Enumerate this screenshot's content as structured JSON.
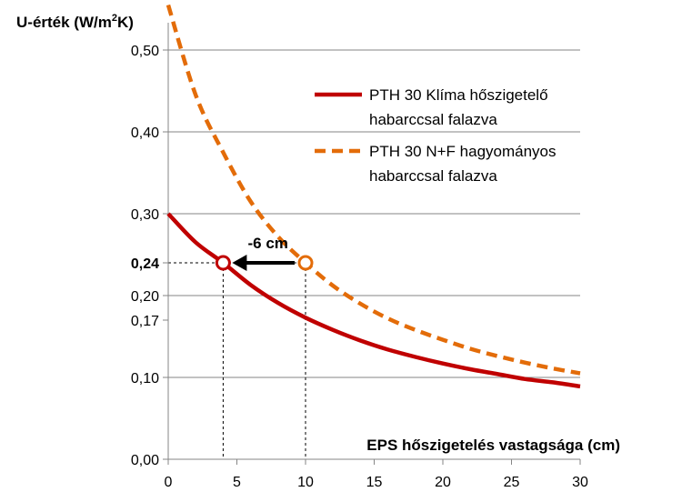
{
  "chart_data": {
    "type": "line",
    "ylabel": "U-érték (W/m²K)",
    "ylabel_parts": [
      "U-érték (W/m",
      "2",
      "K)"
    ],
    "xlabel": "EPS hőszigetelés vastagsága (cm)",
    "xlim": [
      0,
      30
    ],
    "ylim": [
      0,
      0.55
    ],
    "x_ticks": [
      0,
      5,
      10,
      15,
      20,
      25,
      30
    ],
    "x_tick_labels": [
      "0",
      "5",
      "10",
      "15",
      "20",
      "25",
      "30"
    ],
    "y_ticks": [
      0.0,
      0.1,
      0.17,
      0.2,
      0.24,
      0.3,
      0.4,
      0.5
    ],
    "y_tick_labels": [
      "0,00",
      "0,10",
      "0,17",
      "0,20",
      "0,24",
      "0,30",
      "0,40",
      "0,50"
    ],
    "y_tick_bold": [
      "0,24"
    ],
    "gridlines_y": [
      0.1,
      0.2,
      0.3,
      0.4,
      0.5
    ],
    "grid": true,
    "legend_position": "top-right",
    "series": [
      {
        "name_lines": [
          "PTH 30 Klíma hőszigetelő",
          "habarccsal falazva"
        ],
        "color": "#c00000",
        "style": "solid",
        "x": [
          0,
          2,
          4,
          6,
          8,
          10,
          12,
          14,
          16,
          18,
          20,
          22,
          24,
          26,
          28,
          30
        ],
        "values": [
          0.3,
          0.265,
          0.24,
          0.213,
          0.191,
          0.173,
          0.158,
          0.145,
          0.134,
          0.125,
          0.117,
          0.11,
          0.104,
          0.098,
          0.094,
          0.089
        ]
      },
      {
        "name_lines": [
          "PTH 30 N+F hagyományos",
          "habarccsal falazva"
        ],
        "color": "#e36c09",
        "style": "dashed",
        "x": [
          0,
          2,
          4,
          6,
          8,
          10,
          12,
          14,
          16,
          18,
          20,
          22,
          24,
          26,
          28,
          30
        ],
        "values": [
          0.555,
          0.445,
          0.375,
          0.315,
          0.272,
          0.24,
          0.212,
          0.19,
          0.172,
          0.158,
          0.146,
          0.135,
          0.126,
          0.118,
          0.111,
          0.105
        ]
      }
    ],
    "annotations": {
      "arrow_label": "-6 cm",
      "points": [
        {
          "x": 4,
          "y": 0.24,
          "color": "#c00000"
        },
        {
          "x": 10,
          "y": 0.24,
          "color": "#e36c09"
        }
      ],
      "ref_y": 0.24,
      "ref_x": [
        4,
        10
      ]
    }
  }
}
